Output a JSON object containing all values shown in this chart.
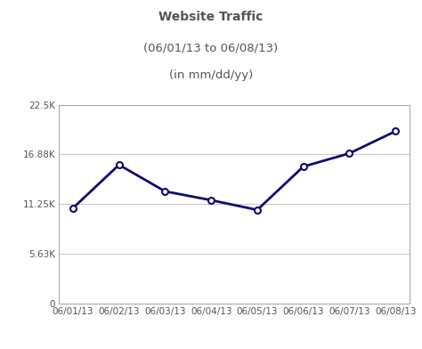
{
  "title_line1": "Website Traffic",
  "title_line2": "(06/01/13 to 06/08/13)",
  "title_line3": "(in mm/dd/yy)",
  "x_labels": [
    "06/01/13",
    "06/02/13",
    "06/03/13",
    "06/04/13",
    "06/05/13",
    "06/06/13",
    "06/07/13",
    "06/08/13"
  ],
  "y_values": [
    10800,
    15700,
    12700,
    11700,
    10600,
    15500,
    17000,
    19500
  ],
  "y_ticks": [
    0,
    5630,
    11250,
    16880,
    22500
  ],
  "y_tick_labels": [
    "0",
    "5.63K",
    "11.25K",
    "16.88K",
    "22.5K"
  ],
  "y_max": 22500,
  "line_color": "#0d0d6b",
  "marker_face_color": "#ffffff",
  "marker_edge_color": "#0d0d6b",
  "bg_color": "#ffffff",
  "plot_bg_color": "#ffffff",
  "grid_color": "#cccccc",
  "title_color": "#555555",
  "title_fontsize": 10,
  "tick_fontsize": 7.5,
  "line_width": 2.0,
  "marker_size": 5
}
